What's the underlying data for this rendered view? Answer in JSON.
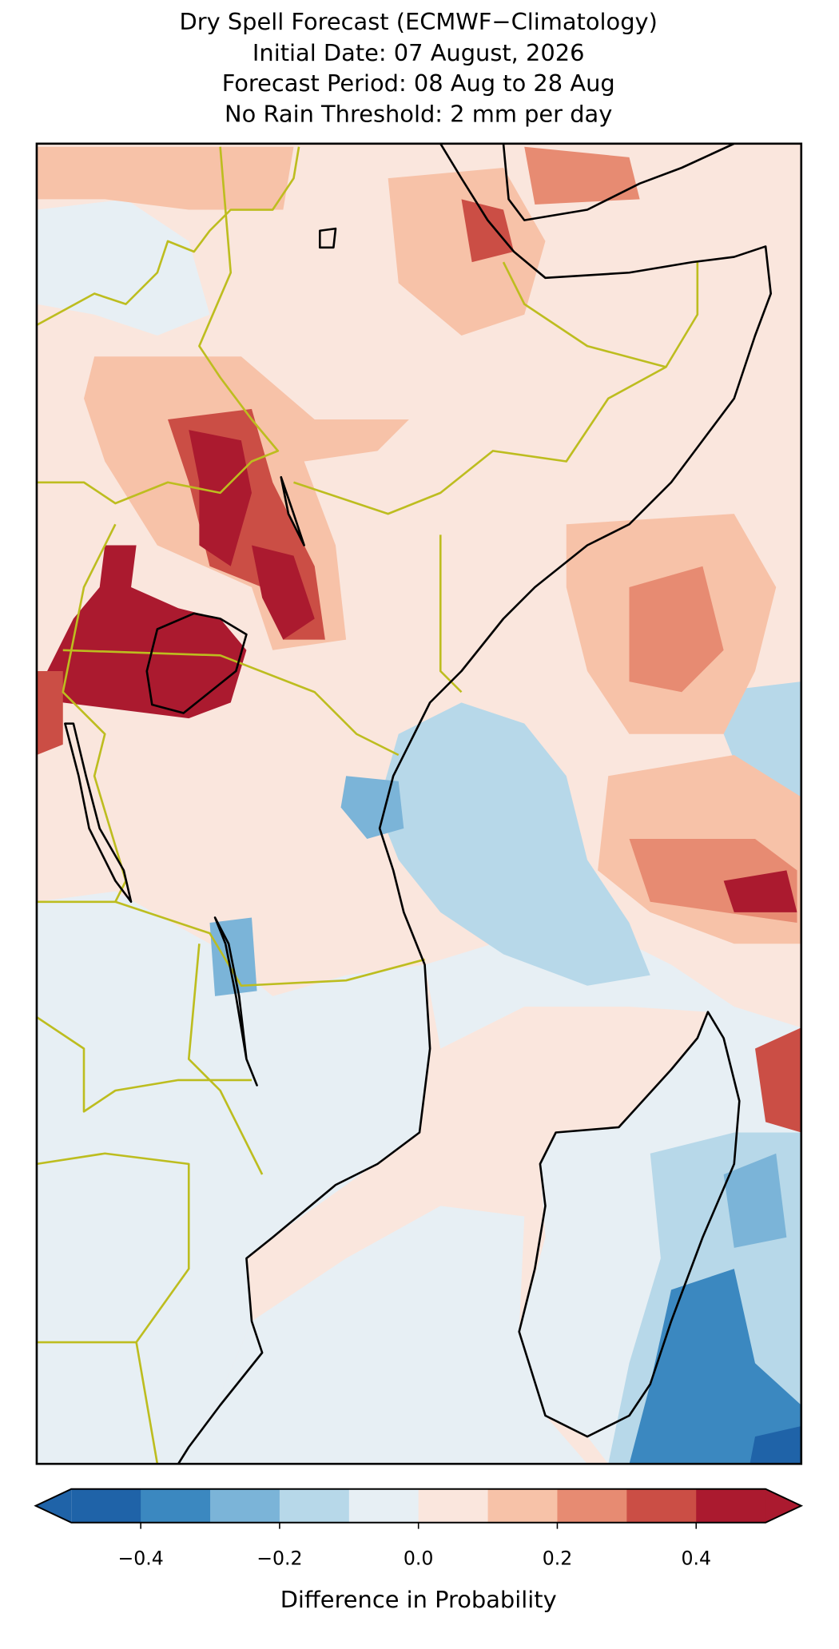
{
  "header": {
    "title_lines": [
      "Dry Spell Forecast (ECMWF−Climatology)",
      "Initial Date: 07 August, 2026",
      "Forecast Period: 08 Aug to 28 Aug",
      "No Rain Threshold: 2 mm per day"
    ]
  },
  "colorbar": {
    "label": "Difference in Probability",
    "boundaries": [
      -0.5,
      -0.4,
      -0.3,
      -0.2,
      -0.1,
      0,
      0.1,
      0.2,
      0.3,
      0.4,
      0.5
    ],
    "colors": [
      "#1f63a8",
      "#3b88c0",
      "#7bb4d8",
      "#b7d8e9",
      "#e7eff4",
      "#fae6dd",
      "#f7c2a8",
      "#e78b72",
      "#cb4e45",
      "#ab1a2f"
    ],
    "extend_colors": [
      "#1f63a8",
      "#ab1a2f"
    ],
    "ticks": [
      {
        "value": -0.4,
        "label": "−0.4"
      },
      {
        "value": -0.2,
        "label": "−0.2"
      },
      {
        "value": 0,
        "label": "0.0"
      },
      0.2,
      0.4
    ]
  }
}
